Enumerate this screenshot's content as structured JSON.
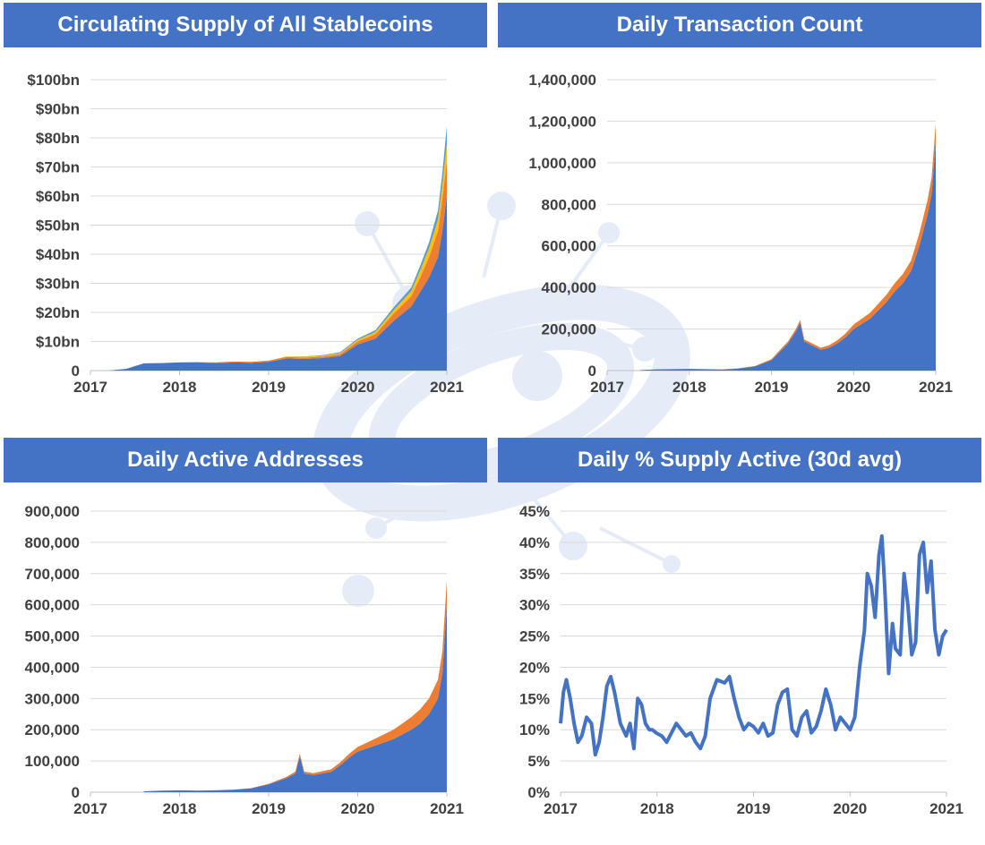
{
  "colors": {
    "banner": "#4472c4",
    "blue": "#4472c4",
    "orange": "#ed7d31",
    "gold": "#ffc000",
    "teal": "#5b9bd5",
    "grid": "#d9d9d9"
  },
  "watermark": "network-logo",
  "chart_data": [
    {
      "id": "supply",
      "type": "area",
      "title": "Circulating Supply of All Stablecoins",
      "xlim": [
        2017,
        2021
      ],
      "x_ticks": [
        "2017",
        "2018",
        "2019",
        "2020",
        "2021"
      ],
      "ylim": [
        0,
        100
      ],
      "y_ticks": [
        "0",
        "$10bn",
        "$20bn",
        "$30bn",
        "$40bn",
        "$50bn",
        "$60bn",
        "$70bn",
        "$80bn",
        "$90bn",
        "$100bn"
      ],
      "x": [
        2017.2,
        2017.4,
        2017.6,
        2017.8,
        2018.0,
        2018.2,
        2018.4,
        2018.6,
        2018.8,
        2019.0,
        2019.2,
        2019.4,
        2019.6,
        2019.8,
        2020.0,
        2020.2,
        2020.4,
        2020.6,
        2020.7,
        2020.8,
        2020.9,
        2020.95,
        2021.0
      ],
      "series": [
        {
          "name": "blue",
          "values": [
            0,
            0.6,
            2.5,
            2.6,
            2.8,
            2.9,
            2.6,
            2.8,
            2.7,
            3.0,
            4.2,
            4.0,
            4.3,
            5.0,
            9.0,
            11.0,
            17.0,
            22.0,
            27.0,
            32.0,
            39.0,
            48.0,
            60.0
          ]
        },
        {
          "name": "orange",
          "values": [
            0,
            0,
            0,
            0,
            0,
            0,
            0.2,
            0.3,
            0.3,
            0.4,
            0.5,
            0.5,
            0.5,
            0.6,
            1.0,
            1.5,
            2.5,
            3.5,
            5.0,
            7.0,
            9.0,
            11.0,
            12.0
          ]
        },
        {
          "name": "gold",
          "values": [
            0,
            0,
            0,
            0,
            0,
            0,
            0,
            0,
            0,
            0,
            0.2,
            0.3,
            0.3,
            0.4,
            0.6,
            0.8,
            1.2,
            1.8,
            2.4,
            3.0,
            4.0,
            5.0,
            6.0
          ]
        },
        {
          "name": "teal",
          "values": [
            0,
            0,
            0,
            0,
            0,
            0,
            0,
            0,
            0,
            0,
            0,
            0.1,
            0.2,
            0.3,
            0.4,
            0.6,
            0.9,
            1.2,
            1.6,
            2.0,
            3.0,
            4.0,
            6.0
          ]
        }
      ]
    },
    {
      "id": "tx",
      "type": "area",
      "title": "Daily Transaction Count",
      "xlim": [
        2017,
        2021
      ],
      "x_ticks": [
        "2017",
        "2018",
        "2019",
        "2020",
        "2021"
      ],
      "ylim": [
        0,
        1400000
      ],
      "y_ticks": [
        "0",
        "200,000",
        "400,000",
        "600,000",
        "800,000",
        "1,000,000",
        "1,200,000",
        "1,400,000"
      ],
      "x": [
        2017.4,
        2017.6,
        2018.0,
        2018.4,
        2018.6,
        2018.8,
        2019.0,
        2019.1,
        2019.2,
        2019.3,
        2019.35,
        2019.4,
        2019.5,
        2019.6,
        2019.7,
        2019.8,
        2019.9,
        2020.0,
        2020.2,
        2020.4,
        2020.5,
        2020.6,
        2020.7,
        2020.8,
        2020.9,
        2020.95,
        2021.0
      ],
      "series": [
        {
          "name": "blue",
          "values": [
            2000,
            6000,
            8000,
            5000,
            10000,
            20000,
            50000,
            90000,
            130000,
            190000,
            230000,
            140000,
            120000,
            100000,
            110000,
            130000,
            160000,
            200000,
            250000,
            330000,
            380000,
            420000,
            480000,
            600000,
            750000,
            850000,
            1100000
          ]
        },
        {
          "name": "orange",
          "values": [
            0,
            0,
            0,
            0,
            1000,
            2000,
            5000,
            8000,
            10000,
            12000,
            14000,
            10000,
            10000,
            10000,
            12000,
            15000,
            18000,
            22000,
            28000,
            35000,
            40000,
            45000,
            50000,
            60000,
            70000,
            80000,
            90000
          ]
        }
      ]
    },
    {
      "id": "addr",
      "type": "area",
      "title": "Daily Active Addresses",
      "xlim": [
        2017,
        2021
      ],
      "x_ticks": [
        "2017",
        "2018",
        "2019",
        "2020",
        "2021"
      ],
      "ylim": [
        0,
        900000
      ],
      "y_ticks": [
        "0",
        "100,000",
        "200,000",
        "300,000",
        "400,000",
        "500,000",
        "600,000",
        "700,000",
        "800,000",
        "900,000"
      ],
      "x": [
        2017.6,
        2017.8,
        2018.0,
        2018.2,
        2018.4,
        2018.6,
        2018.8,
        2019.0,
        2019.2,
        2019.3,
        2019.35,
        2019.4,
        2019.5,
        2019.6,
        2019.7,
        2019.8,
        2019.9,
        2020.0,
        2020.1,
        2020.2,
        2020.3,
        2020.4,
        2020.5,
        2020.6,
        2020.7,
        2020.8,
        2020.9,
        2020.95,
        2021.0
      ],
      "series": [
        {
          "name": "blue",
          "values": [
            3000,
            5000,
            6000,
            5000,
            6000,
            8000,
            12000,
            25000,
            45000,
            60000,
            115000,
            60000,
            55000,
            60000,
            65000,
            85000,
            110000,
            130000,
            140000,
            150000,
            160000,
            170000,
            185000,
            200000,
            220000,
            250000,
            300000,
            380000,
            600000
          ]
        },
        {
          "name": "orange",
          "values": [
            0,
            0,
            0,
            0,
            0,
            0,
            1000,
            2000,
            4000,
            6000,
            8000,
            6000,
            6000,
            7000,
            8000,
            10000,
            12000,
            15000,
            18000,
            22000,
            26000,
            30000,
            35000,
            40000,
            45000,
            50000,
            60000,
            70000,
            80000
          ]
        }
      ]
    },
    {
      "id": "pct",
      "type": "line",
      "title": "Daily % Supply Active (30d avg)",
      "xlim": [
        2017,
        2021
      ],
      "x_ticks": [
        "2017",
        "2018",
        "2019",
        "2020",
        "2021"
      ],
      "ylim": [
        0,
        45
      ],
      "y_ticks": [
        "0%",
        "5%",
        "10%",
        "15%",
        "20%",
        "25%",
        "30%",
        "35%",
        "40%",
        "45%"
      ],
      "series": [
        {
          "name": "% supply active",
          "x": [
            2017.0,
            2017.03,
            2017.06,
            2017.1,
            2017.14,
            2017.18,
            2017.22,
            2017.27,
            2017.32,
            2017.36,
            2017.4,
            2017.44,
            2017.48,
            2017.52,
            2017.56,
            2017.62,
            2017.68,
            2017.72,
            2017.76,
            2017.8,
            2017.84,
            2017.88,
            2017.92,
            2017.95,
            2017.99,
            2018.05,
            2018.1,
            2018.2,
            2018.3,
            2018.35,
            2018.4,
            2018.45,
            2018.5,
            2018.55,
            2018.62,
            2018.7,
            2018.75,
            2018.8,
            2018.85,
            2018.9,
            2018.95,
            2019.0,
            2019.05,
            2019.1,
            2019.15,
            2019.2,
            2019.25,
            2019.3,
            2019.35,
            2019.4,
            2019.45,
            2019.5,
            2019.55,
            2019.6,
            2019.65,
            2019.7,
            2019.75,
            2019.8,
            2019.85,
            2019.9,
            2019.95,
            2020.0,
            2020.05,
            2020.1,
            2020.15,
            2020.18,
            2020.22,
            2020.26,
            2020.3,
            2020.33,
            2020.36,
            2020.4,
            2020.44,
            2020.47,
            2020.52,
            2020.56,
            2020.6,
            2020.64,
            2020.68,
            2020.72,
            2020.76,
            2020.8,
            2020.84,
            2020.88,
            2020.92,
            2020.96,
            2021.0
          ],
          "values": [
            11,
            16,
            18,
            15,
            11,
            8,
            9,
            12,
            11,
            6,
            8,
            12,
            17,
            18.5,
            16,
            11,
            9,
            11,
            7,
            15,
            14,
            11,
            10,
            10,
            9.5,
            9,
            8,
            11,
            9,
            9.5,
            8,
            7,
            9,
            15,
            18,
            17.5,
            18.5,
            15,
            12,
            10,
            11,
            10.5,
            9.5,
            11,
            9,
            9.5,
            14,
            16,
            16.5,
            10,
            9,
            12,
            13,
            9.5,
            10.5,
            13,
            16.5,
            14,
            10,
            12,
            11,
            10,
            12,
            20,
            26,
            35,
            33,
            28,
            38,
            41,
            33,
            19,
            27,
            23,
            22,
            35,
            30,
            22,
            24,
            38,
            40,
            32,
            37,
            26,
            22,
            25,
            26
          ]
        }
      ]
    }
  ]
}
